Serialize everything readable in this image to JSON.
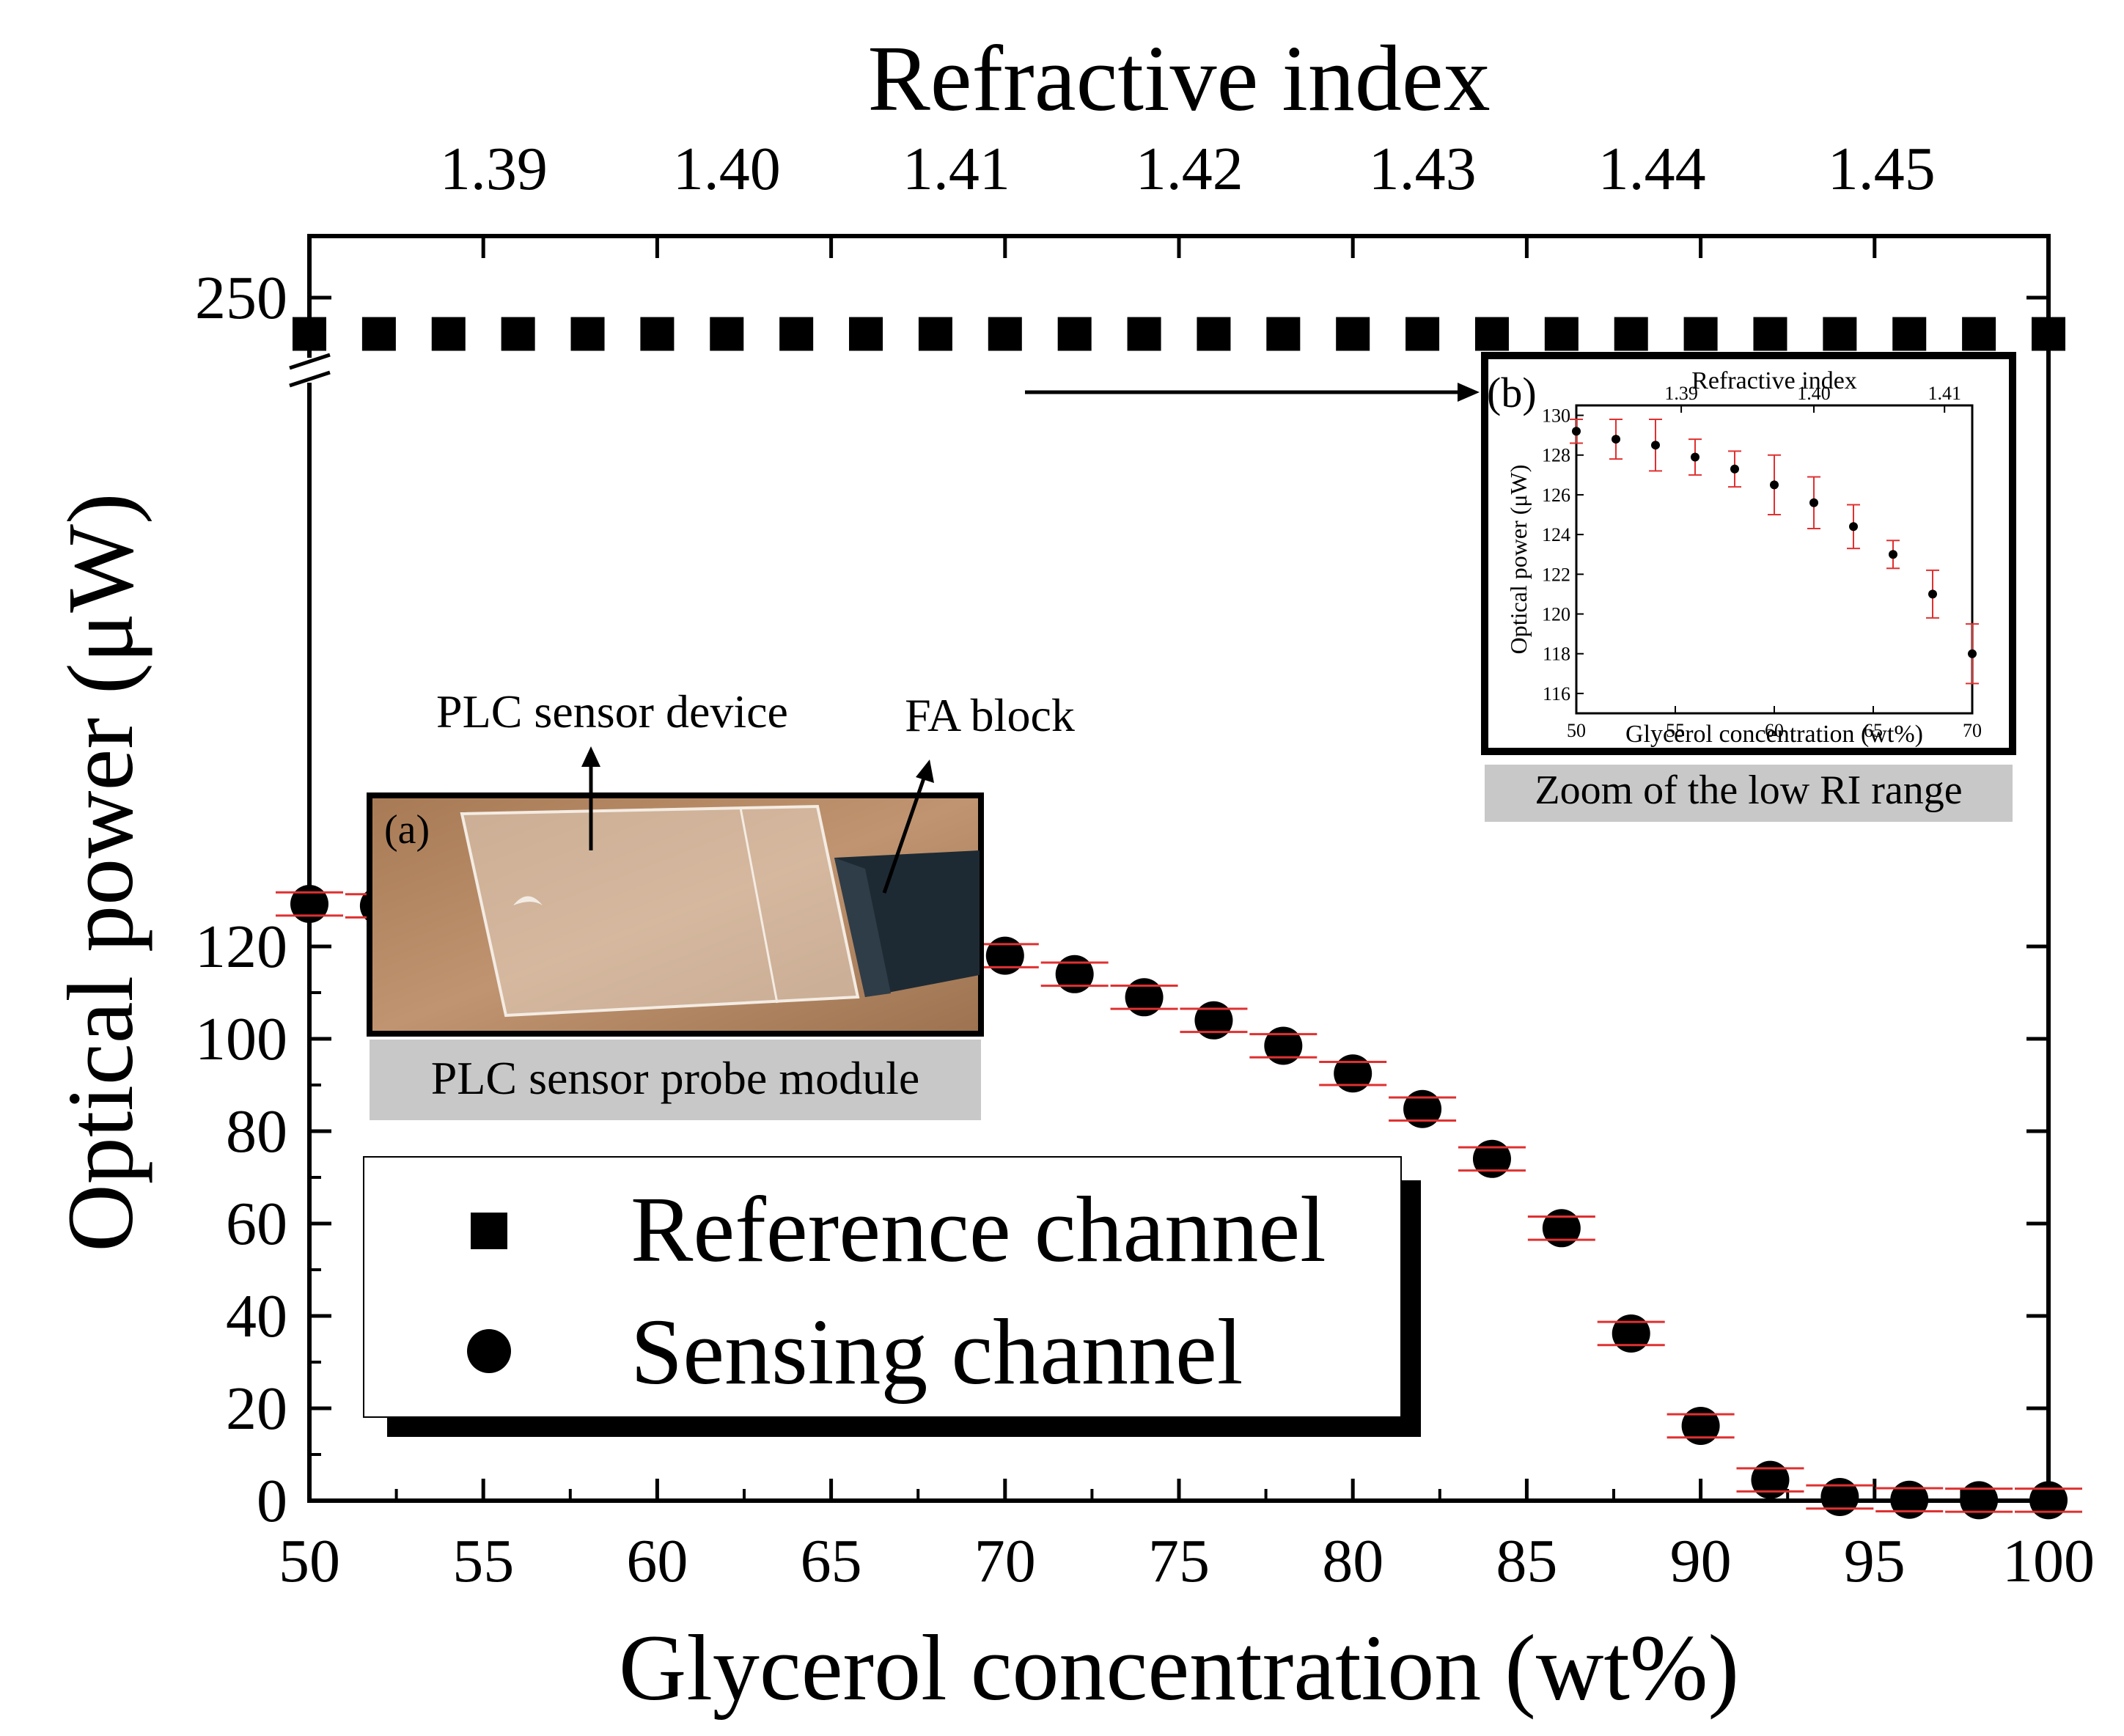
{
  "chart_data": {
    "type": "scatter",
    "title": "",
    "xlabel": "Glycerol concentration (wt%)",
    "ylabel": "Optical power (μW)",
    "top_axis_label": "Refractive index",
    "xlim": [
      50,
      100
    ],
    "ylim": [
      0,
      250
    ],
    "x_ticks": [
      "50",
      "55",
      "60",
      "65",
      "70",
      "75",
      "80",
      "85",
      "90",
      "95",
      "100"
    ],
    "x_tick_values": [
      50,
      55,
      60,
      65,
      70,
      75,
      80,
      85,
      90,
      95,
      100
    ],
    "y_ticks": [
      "0",
      "20",
      "40",
      "60",
      "80",
      "100",
      "120",
      "250"
    ],
    "y_tick_values": [
      0,
      20,
      40,
      60,
      80,
      100,
      120,
      250
    ],
    "y_axis_break": {
      "from": 131,
      "to": 244
    },
    "top_ticks": [
      "1.39",
      "1.40",
      "1.41",
      "1.42",
      "1.43",
      "1.44",
      "1.45"
    ],
    "top_tick_positions_x": [
      55.3,
      62.0,
      68.6,
      75.3,
      82.0,
      88.6,
      95.2
    ],
    "grid": false,
    "series": [
      {
        "name": "Reference channel",
        "marker": "square",
        "color": "#000000",
        "x": [
          50,
          52,
          54,
          56,
          58,
          60,
          62,
          64,
          66,
          68,
          70,
          72,
          74,
          76,
          78,
          80,
          82,
          84,
          86,
          88,
          90,
          92,
          94,
          96,
          98,
          100
        ],
        "y": [
          247,
          247,
          247,
          247,
          247,
          247,
          247,
          247,
          247,
          247,
          247,
          247,
          247,
          247,
          247,
          247,
          247,
          247,
          247,
          247,
          247,
          247,
          247,
          247,
          247,
          247
        ]
      },
      {
        "name": "Sensing channel",
        "marker": "circle",
        "color": "#000000",
        "error_color": "#e03030",
        "x": [
          50,
          52,
          54,
          56,
          58,
          60,
          62,
          64,
          66,
          68,
          70,
          72,
          74,
          76,
          78,
          80,
          82,
          84,
          86,
          88,
          90,
          92,
          94,
          96,
          98,
          100
        ],
        "y": [
          129.2,
          128.8,
          128.5,
          127.9,
          127.3,
          126.4,
          125.5,
          124.4,
          122.9,
          121.0,
          118.0,
          114.0,
          109.0,
          104.0,
          98.5,
          92.5,
          84.8,
          74.0,
          59.0,
          36.2,
          16.2,
          4.5,
          0.8,
          0.2,
          0.1,
          0.1
        ],
        "error": [
          0.6,
          0.6,
          0.6,
          0.6,
          0.6,
          0.6,
          0.6,
          0.6,
          0.6,
          0.6,
          0.6,
          0.6,
          0.6,
          0.6,
          0.6,
          0.6,
          0.6,
          0.6,
          0.6,
          0.6,
          0.6,
          0.6,
          0.6,
          0.6,
          0.6,
          0.6
        ]
      }
    ],
    "legend": {
      "placement": "bottom-left",
      "entries": [
        "Reference channel",
        "Sensing channel"
      ]
    },
    "highlight_box": {
      "x": [
        50,
        70.5
      ],
      "y": [
        109,
        132
      ]
    },
    "inset_b": {
      "panel_label": "(b)",
      "title": "Refractive index",
      "xlabel": "Glycerol concentration (wt%)",
      "ylabel": "Optical power (μW)",
      "xlim": [
        50,
        70
      ],
      "ylim": [
        115,
        130.5
      ],
      "x_ticks": [
        "50",
        "55",
        "60",
        "65",
        "70"
      ],
      "x_tick_values": [
        50,
        55,
        60,
        65,
        70
      ],
      "y_ticks": [
        "116",
        "118",
        "120",
        "122",
        "124",
        "126",
        "128",
        "130"
      ],
      "y_tick_values": [
        116,
        118,
        120,
        122,
        124,
        126,
        128,
        130
      ],
      "top_ticks": [
        "1.39",
        "1.40",
        "1.41"
      ],
      "top_tick_positions_x": [
        55.3,
        62.0,
        68.6
      ],
      "x": [
        50,
        52,
        54,
        56,
        58,
        60,
        62,
        64,
        66,
        68,
        70
      ],
      "y": [
        129.2,
        128.8,
        128.5,
        127.9,
        127.3,
        126.5,
        125.6,
        124.4,
        123.0,
        121.0,
        118.0
      ],
      "error": [
        0.6,
        1.0,
        1.3,
        0.9,
        0.9,
        1.5,
        1.3,
        1.1,
        0.7,
        1.2,
        1.5
      ],
      "caption": "Zoom  of the low RI range"
    },
    "inset_a": {
      "panel_label": "(a)",
      "caption": "PLC sensor probe module",
      "annotations": [
        "PLC  sensor device",
        "FA block"
      ]
    }
  },
  "colors": {
    "marker": "#000000",
    "error_bar": "#e03030",
    "caption_bg": "#c8c8c8",
    "photo_wood": "#b88a62",
    "fa_block": "#1e2a33"
  }
}
